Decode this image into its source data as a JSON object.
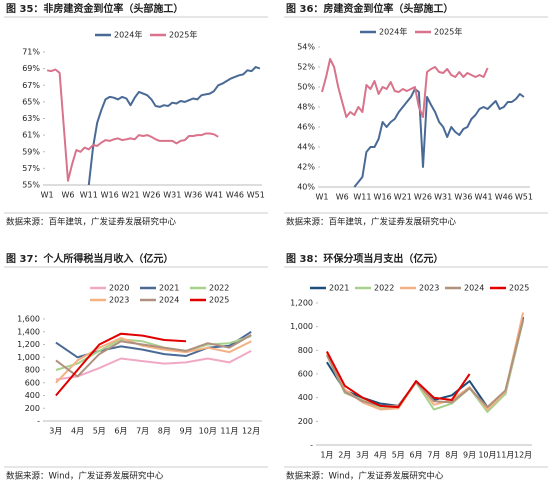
{
  "chart_data": [
    {
      "type": "line",
      "title": "图 35：非房建资金到位率（头部施工）",
      "source": "数据来源：百年建筑，广发证券发展研究中心",
      "categories": [
        "W1",
        null,
        null,
        null,
        null,
        "W6",
        null,
        null,
        null,
        null,
        "W11",
        null,
        null,
        null,
        null,
        "W16",
        null,
        null,
        null,
        null,
        "W21",
        null,
        null,
        null,
        null,
        "W26",
        null,
        null,
        null,
        null,
        "W31",
        null,
        null,
        null,
        null,
        "W36",
        null,
        null,
        null,
        null,
        "W41",
        null,
        null,
        null,
        null,
        "W46",
        null,
        null,
        null,
        null,
        "W51",
        null
      ],
      "series": [
        {
          "name": "2024年",
          "color": "#4a6a96",
          "values": [
            null,
            null,
            null,
            null,
            null,
            null,
            null,
            null,
            null,
            null,
            55,
            59.5,
            62.5,
            64,
            65.3,
            65.6,
            65.5,
            65.3,
            65.6,
            65.4,
            64.6,
            65.5,
            66.2,
            66,
            65.8,
            65.3,
            64.5,
            64.4,
            64.6,
            64.5,
            64.9,
            64.8,
            65.1,
            65,
            65.2,
            65.4,
            65.3,
            65.8,
            65.9,
            66,
            66.3,
            67,
            67.2,
            67.5,
            67.8,
            68,
            68.2,
            68.3,
            68.8,
            68.7,
            69.2,
            69
          ]
        },
        {
          "name": "2025年",
          "color": "#d9738b",
          "values": [
            68.8,
            68.7,
            68.9,
            68.5,
            62,
            55.5,
            57.5,
            59.2,
            59,
            59.5,
            59.3,
            59.8,
            59.7,
            60.1,
            60.4,
            60.3,
            60.5,
            60.6,
            60.4,
            60.5,
            60.6,
            60.5,
            61,
            60.9,
            61,
            60.8,
            60.5,
            60.3,
            60.3,
            60.3,
            60.3,
            60,
            60.3,
            60.4,
            60.9,
            60.9,
            61,
            61,
            61.2,
            61.2,
            61.1,
            60.8,
            null,
            null,
            null,
            null,
            null,
            null,
            null,
            null,
            null,
            null
          ]
        }
      ],
      "ylim": [
        55,
        71
      ],
      "yticks": [
        {
          "value": 55,
          "label": "55%"
        },
        {
          "value": 57,
          "label": "57%"
        },
        {
          "value": 59,
          "label": "59%"
        },
        {
          "value": 61,
          "label": "61%"
        },
        {
          "value": 63,
          "label": "63%"
        },
        {
          "value": 65,
          "label": "65%"
        },
        {
          "value": 67,
          "label": "67%"
        },
        {
          "value": 69,
          "label": "69%"
        },
        {
          "value": 71,
          "label": "71%"
        }
      ],
      "grid": false,
      "legend": "top"
    },
    {
      "type": "line",
      "title": "图 36：房建资金到位率（头部施工）",
      "source": "数据来源：百年建筑，广发证券发展研究中心",
      "categories": [
        "W1",
        null,
        null,
        null,
        null,
        "W6",
        null,
        null,
        null,
        null,
        "W11",
        null,
        null,
        null,
        null,
        "W16",
        null,
        null,
        null,
        null,
        "W21",
        null,
        null,
        null,
        null,
        "W26",
        null,
        null,
        null,
        null,
        "W31",
        null,
        null,
        null,
        null,
        "W36",
        null,
        null,
        null,
        null,
        "W41",
        null,
        null,
        null,
        null,
        "W46",
        null,
        null,
        null,
        null,
        "W51",
        null
      ],
      "series": [
        {
          "name": "2024年",
          "color": "#4a6a96",
          "values": [
            null,
            null,
            null,
            null,
            null,
            null,
            null,
            null,
            40,
            40.5,
            41,
            43.5,
            44,
            44,
            44.8,
            46.5,
            46,
            46.5,
            46.8,
            47.5,
            48,
            48.5,
            49,
            49.8,
            49.5,
            42,
            49,
            48.2,
            47.5,
            46.5,
            46,
            45,
            46,
            45.5,
            45.2,
            45.8,
            46,
            46.8,
            47.2,
            47.8,
            48,
            47.8,
            48.2,
            48.6,
            47.8,
            48,
            48.5,
            48.5,
            48.8,
            49.3,
            49,
            null
          ]
        },
        {
          "name": "2025年",
          "color": "#d9738b",
          "values": [
            49.5,
            51,
            52.8,
            52,
            50,
            48.5,
            47,
            47.5,
            47.2,
            48,
            47.5,
            50.2,
            49.8,
            50.6,
            49.3,
            50,
            49.8,
            50.5,
            49.6,
            49.5,
            49.8,
            49.6,
            49.8,
            50,
            48,
            47,
            51.5,
            51.8,
            52,
            51.5,
            51.4,
            51.8,
            51.2,
            51,
            51.5,
            51,
            51.4,
            51.2,
            51,
            51.2,
            51,
            51.9,
            null,
            null,
            null,
            null,
            null,
            null,
            null,
            null,
            null,
            null
          ]
        }
      ],
      "ylim": [
        40,
        54
      ],
      "yticks": [
        {
          "value": 40,
          "label": "40%"
        },
        {
          "value": 42,
          "label": "42%"
        },
        {
          "value": 44,
          "label": "44%"
        },
        {
          "value": 46,
          "label": "46%"
        },
        {
          "value": 48,
          "label": "48%"
        },
        {
          "value": 50,
          "label": "50%"
        },
        {
          "value": 52,
          "label": "52%"
        },
        {
          "value": 54,
          "label": "54%"
        }
      ],
      "grid": false,
      "legend": "top"
    },
    {
      "type": "line",
      "title": "图 37：个人所得税当月收入（亿元）",
      "source": "数据来源：Wind，广发证券发展研究中心",
      "categories": [
        "3月",
        "4月",
        "5月",
        "6月",
        "7月",
        "8月",
        "9月",
        "10月",
        "11月",
        "12月"
      ],
      "series": [
        {
          "name": "2020",
          "color": "#f0a8c4",
          "values": [
            650,
            700,
            830,
            980,
            940,
            900,
            920,
            980,
            920,
            1100
          ]
        },
        {
          "name": "2021",
          "color": "#4a6a96",
          "values": [
            1230,
            1000,
            1100,
            1170,
            1120,
            1050,
            1020,
            1150,
            1180,
            1400
          ]
        },
        {
          "name": "2022",
          "color": "#a9d18e",
          "values": [
            800,
            900,
            1100,
            1280,
            1250,
            1150,
            1100,
            1200,
            1220,
            1330
          ]
        },
        {
          "name": "2023",
          "color": "#f4b183",
          "values": [
            600,
            950,
            1150,
            1300,
            1180,
            1120,
            1080,
            1150,
            1080,
            1250
          ]
        },
        {
          "name": "2024",
          "color": "#b0907e",
          "values": [
            950,
            700,
            1050,
            1250,
            1200,
            1150,
            1100,
            1220,
            1150,
            1350
          ]
        },
        {
          "name": "2025",
          "color": "#e00000",
          "values": [
            400,
            800,
            1200,
            1370,
            1340,
            1270,
            1250,
            null,
            null,
            null
          ]
        }
      ],
      "ylim": [
        0,
        1600
      ],
      "yticks": [
        {
          "value": 0,
          "label": "-"
        },
        200,
        400,
        600,
        800,
        {
          "value": 1000,
          "label": "1,000"
        },
        {
          "value": 1200,
          "label": "1,200"
        },
        {
          "value": 1400,
          "label": "1,400"
        },
        {
          "value": 1600,
          "label": "1,600"
        }
      ],
      "grid": false,
      "legend": "top"
    },
    {
      "type": "line",
      "title": "图 38：环保分项当月支出（亿元）",
      "source": "数据来源：Wind，广发证券发展研究中心",
      "categories": [
        "1月",
        "2月",
        "3月",
        "4月",
        "5月",
        "6月",
        "7月",
        "8月",
        "9月",
        "10月",
        "11月",
        "12月"
      ],
      "series": [
        {
          "name": "2021",
          "color": "#1f4e79",
          "values": [
            700,
            460,
            400,
            350,
            330,
            530,
            380,
            420,
            540,
            320,
            430,
            1080
          ]
        },
        {
          "name": "2022",
          "color": "#a9d18e",
          "values": [
            760,
            440,
            380,
            310,
            310,
            530,
            300,
            350,
            480,
            280,
            430,
            1050
          ]
        },
        {
          "name": "2023",
          "color": "#f4b183",
          "values": [
            780,
            470,
            360,
            300,
            310,
            540,
            340,
            380,
            490,
            300,
            450,
            1120
          ]
        },
        {
          "name": "2024",
          "color": "#b0907e",
          "values": [
            760,
            450,
            370,
            330,
            330,
            530,
            370,
            360,
            480,
            320,
            460,
            1060
          ]
        },
        {
          "name": "2025",
          "color": "#e00000",
          "values": [
            790,
            500,
            400,
            330,
            320,
            540,
            400,
            380,
            600,
            null,
            null,
            null
          ]
        }
      ],
      "ylim": [
        0,
        1200
      ],
      "yticks": [
        {
          "value": 0,
          "label": "-"
        },
        200,
        400,
        600,
        800,
        {
          "value": 1000,
          "label": "1,000"
        },
        {
          "value": 1200,
          "label": "1,200"
        }
      ],
      "grid": false,
      "legend": "top"
    }
  ]
}
